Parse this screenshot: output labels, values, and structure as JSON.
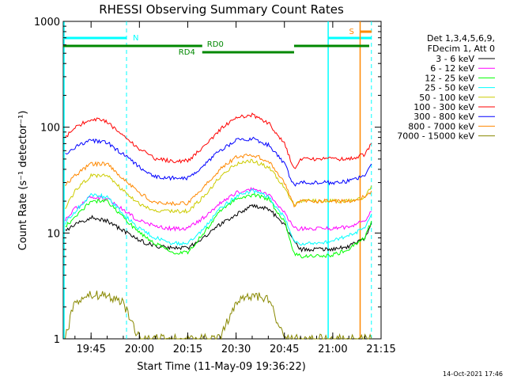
{
  "chart_data": {
    "type": "line",
    "title": "RHESSI Observing Summary Count Rates",
    "xlabel": "Start Time (11-May-09 19:36:22)",
    "ylabel": "Count Rate (s⁻¹ detector⁻¹)",
    "ylog": true,
    "ylim": [
      1,
      1000
    ],
    "xlim": [
      "19:36:22",
      "21:15"
    ],
    "y_ticks": [
      "1",
      "10",
      "100",
      "1000"
    ],
    "x_ticks": [
      "19:45",
      "20:00",
      "20:15",
      "20:30",
      "20:45",
      "21:00",
      "21:15"
    ],
    "grid": false,
    "legend_position": "right",
    "legend_header": [
      "Det 1,3,4,5,6,9,",
      "FDecim 1, Att 0"
    ],
    "x": [
      "19:37",
      "19:40",
      "19:45",
      "19:50",
      "19:55",
      "20:00",
      "20:05",
      "20:10",
      "20:15",
      "20:20",
      "20:25",
      "20:30",
      "20:35",
      "20:40",
      "20:45",
      "20:48",
      "20:50",
      "20:55",
      "21:00",
      "21:05",
      "21:10",
      "21:12"
    ],
    "series": [
      {
        "name": "3 - 6 keV",
        "color": "#000000",
        "values": [
          10.5,
          12,
          14,
          13,
          10.5,
          8.5,
          7.5,
          7.2,
          7.2,
          9,
          12,
          15,
          18,
          17,
          12,
          8.2,
          7,
          7,
          7,
          7.5,
          9,
          12.5
        ]
      },
      {
        "name": "6 - 12 keV",
        "color": "#ff00ff",
        "values": [
          13.5,
          17,
          22,
          21,
          16.5,
          13,
          11.5,
          11,
          11,
          14,
          19,
          24,
          26,
          23,
          16,
          11,
          11,
          11,
          11,
          11.5,
          13,
          16
        ]
      },
      {
        "name": "12 - 25 keV",
        "color": "#00ff00",
        "values": [
          11.5,
          14,
          20,
          20,
          14,
          10,
          8,
          6.5,
          6.5,
          10,
          16,
          21,
          23,
          21,
          13,
          6.5,
          6,
          6,
          6.2,
          7,
          9,
          13
        ]
      },
      {
        "name": "25 - 50 keV",
        "color": "#00ffff",
        "values": [
          12.5,
          16,
          23,
          22,
          15,
          11,
          9,
          8,
          8,
          11,
          17,
          22,
          25,
          22,
          14,
          8.5,
          8,
          8,
          8.5,
          9.5,
          11,
          15
        ]
      },
      {
        "name": "50 - 100 keV",
        "color": "#cccc00",
        "values": [
          17,
          25,
          35,
          35,
          25,
          19,
          16,
          16,
          16,
          22,
          34,
          45,
          48,
          42,
          27,
          18,
          20,
          20,
          20,
          20,
          22,
          28
        ]
      },
      {
        "name": "100 - 300 keV",
        "color": "#ff0000",
        "values": [
          80,
          100,
          120,
          112,
          82,
          62,
          50,
          48,
          48,
          65,
          95,
          125,
          130,
          110,
          70,
          40,
          50,
          50,
          50,
          50,
          55,
          70
        ]
      },
      {
        "name": "300 - 800 keV",
        "color": "#0000ff",
        "values": [
          55,
          65,
          75,
          72,
          55,
          42,
          34,
          33,
          33,
          44,
          60,
          75,
          78,
          68,
          45,
          28,
          30,
          30,
          30,
          31,
          35,
          45
        ]
      },
      {
        "name": "800 - 7000 keV",
        "color": "#ff8800",
        "values": [
          28,
          35,
          45,
          45,
          33,
          24,
          19,
          19,
          19,
          27,
          40,
          52,
          55,
          48,
          30,
          18,
          20,
          20,
          20,
          20,
          22,
          25
        ]
      },
      {
        "name": "7000 - 15000 keV",
        "color": "#888800",
        "values": [
          1,
          2.3,
          2.6,
          2.6,
          2.2,
          1,
          1,
          1,
          1,
          1,
          1,
          2.2,
          2.6,
          2.4,
          1,
          1,
          1,
          1,
          1,
          1,
          1,
          1
        ]
      }
    ],
    "annotations": {
      "N": "N",
      "RD0": "RD0",
      "RD4": "RD4",
      "S": "S"
    },
    "footer_date": "14-Oct-2021 17:46"
  }
}
